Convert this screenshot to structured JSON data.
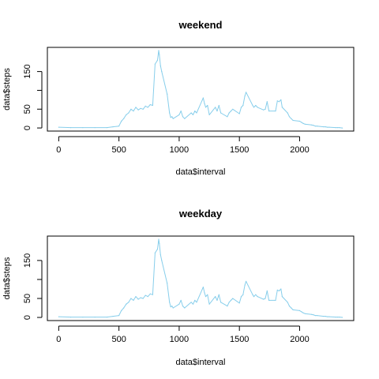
{
  "chart_data": [
    {
      "type": "line",
      "title": "weekend",
      "xlabel": "data$interval",
      "ylabel": "data$steps",
      "xlim": [
        0,
        2355
      ],
      "ylim": [
        0,
        206
      ],
      "x_ticks": [
        0,
        500,
        1000,
        1500,
        2000
      ],
      "y_ticks": [
        0,
        50,
        100,
        150
      ],
      "y_tick_labels": [
        "0",
        "50",
        "",
        "150"
      ],
      "grid": false,
      "series": [
        {
          "color": "#87CEEB",
          "x": [
            0,
            100,
            200,
            300,
            400,
            450,
            500,
            520,
            540,
            560,
            580,
            600,
            620,
            640,
            660,
            680,
            700,
            720,
            740,
            760,
            780,
            800,
            820,
            830,
            835,
            845,
            855,
            900,
            920,
            930,
            940,
            950,
            1000,
            1015,
            1030,
            1045,
            1100,
            1115,
            1130,
            1145,
            1200,
            1210,
            1220,
            1235,
            1250,
            1300,
            1315,
            1330,
            1345,
            1400,
            1415,
            1430,
            1445,
            1500,
            1515,
            1530,
            1545,
            1555,
            1610,
            1620,
            1635,
            1650,
            1700,
            1715,
            1730,
            1745,
            1800,
            1815,
            1830,
            1845,
            1855,
            1900,
            1915,
            1930,
            1945,
            2000,
            2015,
            2030,
            2045,
            2100,
            2115,
            2130,
            2145,
            2200,
            2215,
            2230,
            2245,
            2300,
            2315,
            2330,
            2355
          ],
          "y": [
            2,
            1,
            1,
            1,
            1,
            3,
            5,
            18,
            25,
            35,
            40,
            50,
            45,
            55,
            48,
            52,
            50,
            58,
            55,
            62,
            60,
            170,
            180,
            206,
            195,
            165,
            150,
            90,
            40,
            28,
            30,
            25,
            35,
            45,
            30,
            25,
            40,
            35,
            45,
            40,
            80,
            65,
            55,
            60,
            35,
            55,
            45,
            60,
            40,
            30,
            40,
            45,
            50,
            38,
            55,
            60,
            85,
            95,
            60,
            55,
            60,
            55,
            48,
            50,
            70,
            45,
            45,
            72,
            70,
            75,
            55,
            40,
            30,
            25,
            20,
            18,
            15,
            12,
            10,
            8,
            7,
            5,
            5,
            3,
            3,
            2,
            2,
            1,
            1,
            1,
            0
          ]
        }
      ]
    },
    {
      "type": "line",
      "title": "weekday",
      "xlabel": "data$interval",
      "ylabel": "data$steps",
      "xlim": [
        0,
        2355
      ],
      "ylim": [
        0,
        206
      ],
      "x_ticks": [
        0,
        500,
        1000,
        1500,
        2000
      ],
      "y_ticks": [
        0,
        50,
        100,
        150
      ],
      "y_tick_labels": [
        "0",
        "50",
        "",
        "150"
      ],
      "grid": false,
      "series": [
        {
          "color": "#87CEEB",
          "x": [
            0,
            100,
            200,
            300,
            400,
            450,
            500,
            520,
            540,
            560,
            580,
            600,
            620,
            640,
            660,
            680,
            700,
            720,
            740,
            760,
            780,
            800,
            820,
            830,
            835,
            845,
            855,
            900,
            920,
            930,
            940,
            950,
            1000,
            1015,
            1030,
            1045,
            1100,
            1115,
            1130,
            1145,
            1200,
            1210,
            1220,
            1235,
            1250,
            1300,
            1315,
            1330,
            1345,
            1400,
            1415,
            1430,
            1445,
            1500,
            1515,
            1530,
            1545,
            1555,
            1610,
            1620,
            1635,
            1650,
            1700,
            1715,
            1730,
            1745,
            1800,
            1815,
            1830,
            1845,
            1855,
            1900,
            1915,
            1930,
            1945,
            2000,
            2015,
            2030,
            2045,
            2100,
            2115,
            2130,
            2145,
            2200,
            2215,
            2230,
            2245,
            2300,
            2315,
            2330,
            2355
          ],
          "y": [
            2,
            1,
            1,
            1,
            1,
            3,
            5,
            18,
            25,
            35,
            40,
            50,
            45,
            55,
            48,
            52,
            50,
            58,
            55,
            62,
            60,
            170,
            180,
            206,
            195,
            165,
            150,
            90,
            40,
            28,
            30,
            25,
            35,
            45,
            30,
            25,
            40,
            35,
            45,
            40,
            80,
            65,
            55,
            60,
            35,
            55,
            45,
            60,
            40,
            30,
            40,
            45,
            50,
            38,
            55,
            60,
            85,
            95,
            60,
            55,
            60,
            55,
            48,
            50,
            70,
            45,
            45,
            72,
            70,
            75,
            55,
            40,
            30,
            25,
            20,
            18,
            15,
            12,
            10,
            8,
            7,
            5,
            5,
            3,
            3,
            2,
            2,
            1,
            1,
            1,
            0
          ]
        }
      ]
    }
  ]
}
